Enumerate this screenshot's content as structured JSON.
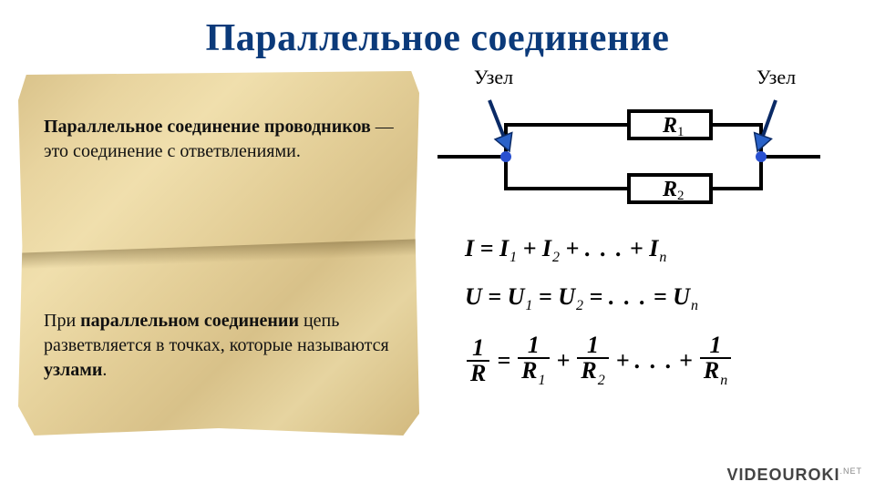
{
  "title": {
    "text": "Параллельное соединение",
    "color": "#0b3a7a",
    "fontsize": 42
  },
  "parchment": {
    "background_gradient": [
      "#d9c28a",
      "#e8d49f",
      "#f0dfad",
      "#e3ce97",
      "#d8c189",
      "#e6d4a0",
      "#d2b97e"
    ],
    "border_color": "#6b5320",
    "para1_prefix_bold": "Параллельное соединение проводников",
    "para1_rest": " — это соединение с ответвлениями.",
    "para2_pre": "При ",
    "para2_bold1": "параллельном соединении",
    "para2_mid": " цепь разветвляется в точках, которые называются ",
    "para2_bold2": "узлами",
    "para2_end": ".",
    "fontsize": 20
  },
  "circuit": {
    "node_label_left": "Узел",
    "node_label_right": "Узел",
    "R1_label": "R",
    "R1_sub": "1",
    "R2_label": "R",
    "R2_sub": "2",
    "wire_color": "#000000",
    "wire_width": 4,
    "node_fill": "#2950d0",
    "arrow_fill": "#2a62c8",
    "arrow_stroke": "#0a2a66",
    "resistor_w": 90,
    "resistor_h": 30,
    "label_fontsize": 22
  },
  "formulas": {
    "fontsize": 26,
    "sub_fontsize": 16,
    "color": "#000000",
    "current": {
      "sym": "I",
      "s1": "1",
      "s2": "2",
      "sn": "n",
      "op": "+",
      "rel": "="
    },
    "voltage": {
      "sym": "U",
      "s1": "1",
      "s2": "2",
      "sn": "n",
      "op": "=",
      "rel": "="
    },
    "resistance": {
      "num": "1",
      "sym": "R",
      "s1": "1",
      "s2": "2",
      "sn": "n",
      "op": "+",
      "rel": "="
    },
    "ellipsis": ". . ."
  },
  "watermark": {
    "brand": "VIDEOUROKI",
    "tld": ".NET"
  }
}
